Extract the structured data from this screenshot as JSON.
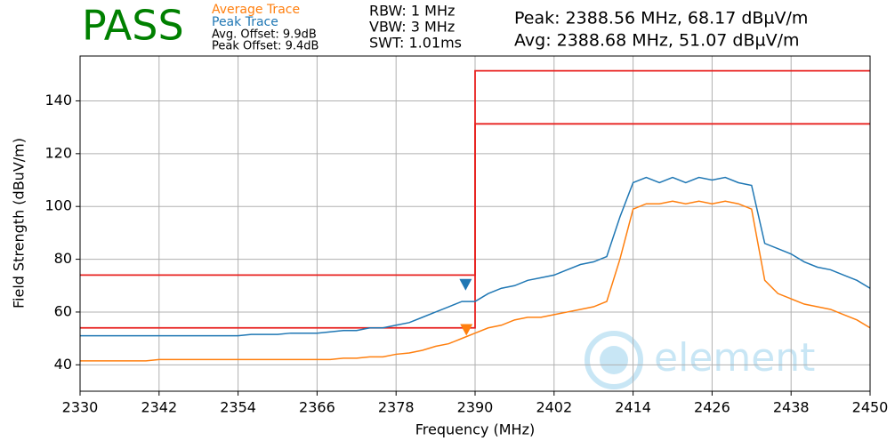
{
  "chart_data": {
    "type": "line",
    "status": "PASS",
    "legend_notes": [
      "Avg. Offset: 9.9dB",
      "Peak Offset: 9.4dB"
    ],
    "settings": [
      "RBW: 1 MHz",
      "VBW: 3 MHz",
      "SWT: 1.01ms"
    ],
    "readouts": [
      "Peak: 2388.56 MHz, 68.17 dBµV/m",
      "Avg: 2388.68 MHz, 51.07 dBµV/m"
    ],
    "watermark": "element",
    "x_label": "Frequency (MHz)",
    "y_label": "Field Strength (dBuV/m)",
    "xlim": [
      2330,
      2450
    ],
    "xticks": [
      2330,
      2342,
      2354,
      2366,
      2378,
      2390,
      2402,
      2414,
      2426,
      2438,
      2450
    ],
    "ylim": [
      30,
      157
    ],
    "yticks": [
      40,
      60,
      80,
      100,
      120,
      140
    ],
    "grid": true,
    "x": [
      2330,
      2332,
      2334,
      2336,
      2338,
      2340,
      2342,
      2344,
      2346,
      2348,
      2350,
      2352,
      2354,
      2356,
      2358,
      2360,
      2362,
      2364,
      2366,
      2368,
      2370,
      2372,
      2374,
      2376,
      2378,
      2380,
      2382,
      2384,
      2386,
      2388,
      2390,
      2392,
      2394,
      2396,
      2398,
      2400,
      2402,
      2404,
      2406,
      2408,
      2410,
      2412,
      2414,
      2416,
      2418,
      2420,
      2422,
      2424,
      2426,
      2428,
      2430,
      2432,
      2434,
      2436,
      2438,
      2440,
      2442,
      2444,
      2446,
      2448,
      2450
    ],
    "series": [
      {
        "name": "Average Trace",
        "color": "#ff7f0e",
        "values": [
          41.5,
          41.5,
          41.5,
          41.5,
          41.5,
          41.5,
          42,
          42,
          42,
          42,
          42,
          42,
          42,
          42,
          42,
          42,
          42,
          42,
          42,
          42,
          42.5,
          42.5,
          43,
          43,
          44,
          44.5,
          45.5,
          47,
          48,
          50,
          52,
          54,
          55,
          57,
          58,
          58,
          59,
          60,
          61,
          62,
          64,
          80,
          99,
          101,
          101,
          102,
          101,
          102,
          101,
          102,
          101,
          99,
          72,
          67,
          65,
          63,
          62,
          61,
          59,
          57,
          54
        ]
      },
      {
        "name": "Peak Trace",
        "color": "#1f77b4",
        "values": [
          51,
          51,
          51,
          51,
          51,
          51,
          51,
          51,
          51,
          51,
          51,
          51,
          51,
          51.5,
          51.5,
          51.5,
          52,
          52,
          52,
          52.5,
          53,
          53,
          54,
          54,
          55,
          56,
          58,
          60,
          62,
          64,
          64,
          67,
          69,
          70,
          72,
          73,
          74,
          76,
          78,
          79,
          81,
          96,
          109,
          111,
          109,
          111,
          109,
          111,
          110,
          111,
          109,
          108,
          86,
          84,
          82,
          79,
          77,
          76,
          74,
          72,
          69
        ]
      }
    ],
    "limit_lines": [
      {
        "color": "#e8211f",
        "x": [
          2330,
          2390,
          2390,
          2450
        ],
        "values": [
          74,
          74,
          151.4,
          151.4
        ]
      },
      {
        "color": "#e8211f",
        "x": [
          2330,
          2390,
          2390,
          2450
        ],
        "values": [
          54,
          54,
          131.3,
          131.3
        ]
      }
    ],
    "markers": [
      {
        "color": "#1f77b4",
        "x": 2388.56,
        "y": 68.17
      },
      {
        "color": "#ff7f0e",
        "x": 2388.68,
        "y": 51.07
      }
    ]
  }
}
